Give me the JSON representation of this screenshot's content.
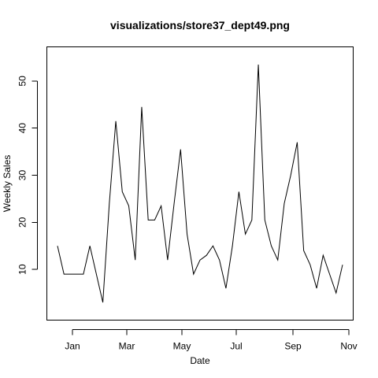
{
  "chart_data": {
    "type": "line",
    "title": "visualizations/store37_dept49.png",
    "xlabel": "Date",
    "ylabel": "Weekly Sales",
    "x_tick_labels": [
      "Jan",
      "Mar",
      "May",
      "Jul",
      "Sep",
      "Nov"
    ],
    "y_ticks": [
      10,
      20,
      30,
      40,
      50
    ],
    "ylim": [
      1.5,
      55
    ],
    "series": [
      {
        "values": [
          15,
          9,
          9,
          9,
          9,
          15,
          9,
          3,
          24,
          41.5,
          26.5,
          23.5,
          12,
          44.5,
          20.5,
          20.5,
          23.5,
          12,
          24,
          35.5,
          17.5,
          9,
          12,
          13,
          15,
          12,
          6,
          15,
          26.5,
          17.5,
          20.5,
          53.5,
          20.5,
          15,
          12,
          24,
          30,
          37,
          14,
          11,
          6,
          13,
          9,
          5,
          11
        ],
        "color": "#000000"
      }
    ],
    "grid": false,
    "legend": "none"
  }
}
